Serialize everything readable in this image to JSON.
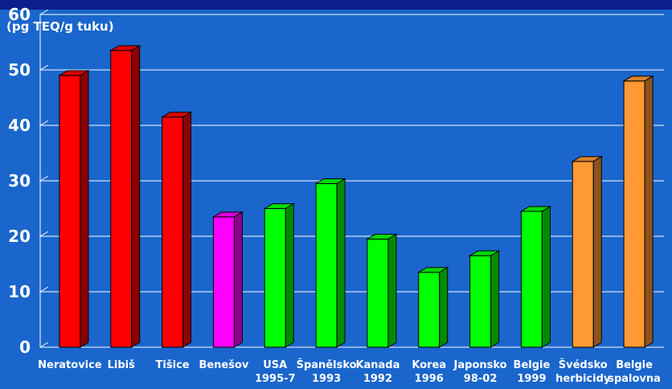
{
  "colors": {
    "background": "#1a66cc",
    "header_band": "#0b1f8c",
    "gridline": "#ffffff",
    "red": "#ff0000",
    "magenta": "#ff00ff",
    "green": "#00ff00",
    "orange": "#ff9933"
  },
  "chart_data": {
    "type": "bar",
    "ylabel": "(pg TEQ/g tuku)",
    "ylim": [
      0,
      60
    ],
    "yticks": [
      0,
      10,
      20,
      30,
      40,
      50,
      60
    ],
    "grid": true,
    "legend": "none",
    "style": "3d",
    "categories": [
      [
        "Neratovice"
      ],
      [
        "Libiš"
      ],
      [
        "Tišice"
      ],
      [
        "Benešov"
      ],
      [
        "USA",
        "1995-7"
      ],
      [
        "Španělsko",
        "1993"
      ],
      [
        "Kanada",
        "1992"
      ],
      [
        "Korea",
        "1996"
      ],
      [
        "Japonsko",
        "98-02"
      ],
      [
        "Belgie",
        "1999"
      ],
      [
        "Švédsko",
        "herbicidy"
      ],
      [
        "Belgie",
        "spalovna"
      ]
    ],
    "values": [
      49,
      53.5,
      41.5,
      23.5,
      25,
      29.5,
      19.5,
      13.5,
      16.5,
      24.5,
      33.5,
      48
    ],
    "bar_colors": [
      "red",
      "red",
      "red",
      "magenta",
      "green",
      "green",
      "green",
      "green",
      "green",
      "green",
      "orange",
      "orange"
    ]
  }
}
